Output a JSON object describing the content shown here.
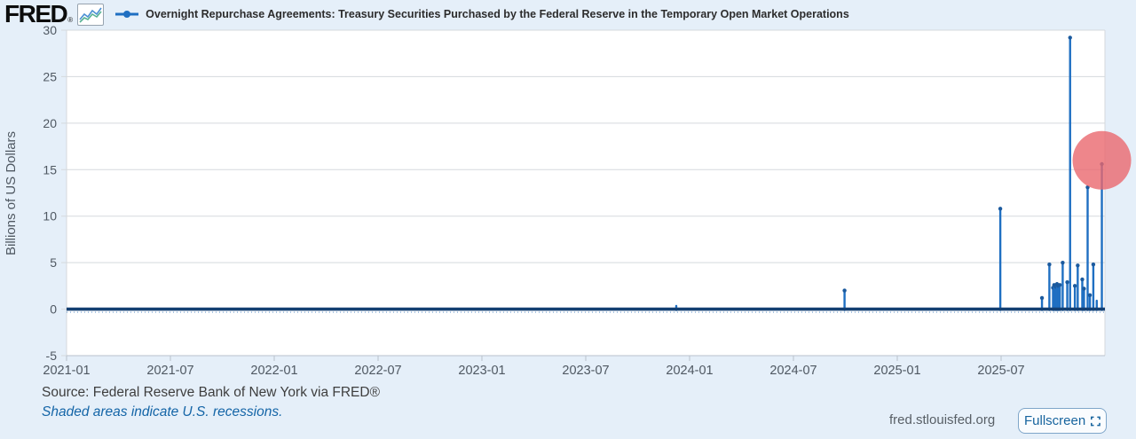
{
  "header": {
    "logo_text": "FRED",
    "logo_reg": "®",
    "series_legend_label": "Overnight Repurchase Agreements: Treasury Securities Purchased by the Federal Reserve in the Temporary Open Market Operations"
  },
  "footer": {
    "source_text": "Source: Federal Reserve Bank of New York via FRED®",
    "recession_note": "Shaded areas indicate U.S. recessions.",
    "site_url": "fred.stlouisfed.org",
    "fullscreen_label": "Fullscreen"
  },
  "chart_data": {
    "type": "line",
    "title": "Overnight Repurchase Agreements: Treasury Securities Purchased by the Federal Reserve in the Temporary Open Market Operations",
    "xlabel": "",
    "ylabel": "Billions of US Dollars",
    "ylim": [
      -5,
      30
    ],
    "y_ticks": [
      -5,
      0,
      5,
      10,
      15,
      20,
      25,
      30
    ],
    "x_tick_labels": [
      "2021-01",
      "2021-07",
      "2022-01",
      "2022-07",
      "2023-01",
      "2023-07",
      "2024-01",
      "2024-07",
      "2025-01",
      "2025-07"
    ],
    "x_range_months": [
      "2021-01",
      "2026-01"
    ],
    "grid": true,
    "legend_position": "top",
    "series": [
      {
        "name": "Overnight Repurchase Agreements: Treasury Securities Purchased by the Federal Reserve in the Temporary Open Market Operations",
        "baseline": 0,
        "spikes": [
          {
            "x": "2023-12-08",
            "v": 0.35
          },
          {
            "x": "2024-09-30",
            "v": 2.0
          },
          {
            "x": "2025-06-30",
            "v": 10.8
          },
          {
            "x": "2025-09-12",
            "v": 1.2
          },
          {
            "x": "2025-09-25",
            "v": 4.8
          },
          {
            "x": "2025-10-01",
            "v": 2.3
          },
          {
            "x": "2025-10-03",
            "v": 2.6
          },
          {
            "x": "2025-10-06",
            "v": 2.4
          },
          {
            "x": "2025-10-08",
            "v": 2.7
          },
          {
            "x": "2025-10-10",
            "v": 2.5
          },
          {
            "x": "2025-10-13",
            "v": 2.6
          },
          {
            "x": "2025-10-18",
            "v": 5.0
          },
          {
            "x": "2025-10-26",
            "v": 2.9
          },
          {
            "x": "2025-10-31",
            "v": 29.2
          },
          {
            "x": "2025-11-09",
            "v": 2.5
          },
          {
            "x": "2025-11-14",
            "v": 4.7
          },
          {
            "x": "2025-11-22",
            "v": 3.2
          },
          {
            "x": "2025-11-25",
            "v": 2.2
          },
          {
            "x": "2025-12-01",
            "v": 13.1
          },
          {
            "x": "2025-12-05",
            "v": 1.5
          },
          {
            "x": "2025-12-11",
            "v": 4.8
          },
          {
            "x": "2025-12-17",
            "v": 0.9
          },
          {
            "x": "2025-12-26",
            "v": 15.6
          }
        ]
      }
    ],
    "highlight": {
      "x": "2025-12-26",
      "v": 16.0,
      "r": 33
    },
    "colors": {
      "background": "#e5eff9",
      "plot_background": "#ffffff",
      "series": "#1f6fc2",
      "baseline": "#133f72",
      "baseline_dots": "#6f9ecf",
      "marker": "#1b5a9e",
      "grid": "#d5d9dd",
      "axis_line": "#b9c2cc",
      "axis_text": "#4f5862",
      "highlight": "rgba(234,104,110,0.8)",
      "accent_link": "#1465a7"
    }
  }
}
